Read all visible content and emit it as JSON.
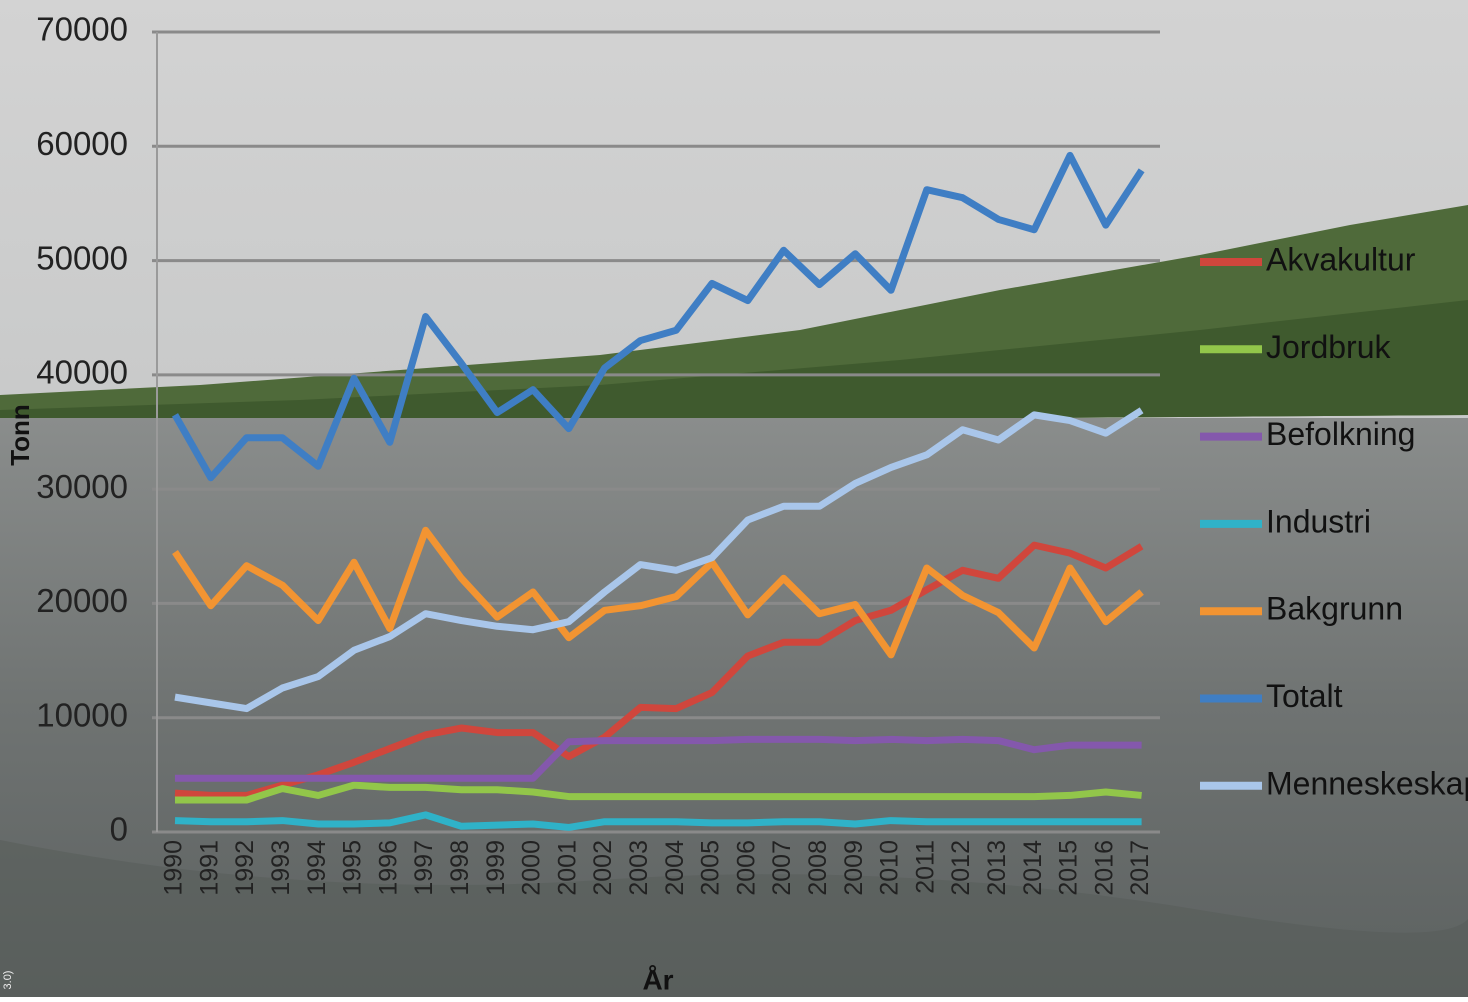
{
  "chart_data": {
    "type": "line",
    "y_label": "Tonn",
    "x_label": "År",
    "credit": "3.0)",
    "categories": [
      "1990",
      "1991",
      "1992",
      "1993",
      "1994",
      "1995",
      "1996",
      "1997",
      "1998",
      "1999",
      "2000",
      "2001",
      "2002",
      "2003",
      "2004",
      "2005",
      "2006",
      "2007",
      "2008",
      "2009",
      "2010",
      "2011",
      "2012",
      "2013",
      "2014",
      "2015",
      "2016",
      "2017"
    ],
    "ylim": [
      0,
      70000
    ],
    "yticks": [
      0,
      10000,
      20000,
      30000,
      40000,
      50000,
      60000,
      70000
    ],
    "grid": true,
    "series": [
      {
        "name": "Akvakultur",
        "color": "#d0463c",
        "values": [
          3400,
          3200,
          3200,
          4100,
          5000,
          6100,
          7300,
          8500,
          9100,
          8700,
          8700,
          6600,
          8300,
          10900,
          10800,
          12200,
          15400,
          16600,
          16600,
          18500,
          19400,
          21200,
          22900,
          22200,
          25100,
          24400,
          23100,
          25000
        ]
      },
      {
        "name": "Jordbruk",
        "color": "#92c64a",
        "values": [
          2800,
          2800,
          2800,
          3800,
          3200,
          4100,
          3900,
          3900,
          3700,
          3700,
          3500,
          3100,
          3100,
          3100,
          3100,
          3100,
          3100,
          3100,
          3100,
          3100,
          3100,
          3100,
          3100,
          3100,
          3100,
          3200,
          3500,
          3200
        ]
      },
      {
        "name": "Befolkning",
        "color": "#8458ac",
        "values": [
          4700,
          4700,
          4700,
          4700,
          4700,
          4700,
          4700,
          4700,
          4700,
          4700,
          4700,
          7900,
          8000,
          8000,
          8000,
          8000,
          8100,
          8100,
          8100,
          8000,
          8100,
          8000,
          8100,
          8000,
          7200,
          7600,
          7600,
          7600
        ]
      },
      {
        "name": "Industri",
        "color": "#2fb2c8",
        "values": [
          1000,
          900,
          900,
          1000,
          700,
          700,
          800,
          1500,
          500,
          600,
          700,
          400,
          900,
          900,
          900,
          800,
          800,
          900,
          900,
          700,
          1000,
          900,
          900,
          900,
          900,
          900,
          900,
          900
        ]
      },
      {
        "name": "Bakgrunn",
        "color": "#f29432",
        "values": [
          24500,
          19800,
          23300,
          21600,
          18500,
          23600,
          17800,
          26400,
          22200,
          18800,
          21000,
          17000,
          19400,
          19800,
          20600,
          23600,
          19000,
          22200,
          19100,
          19900,
          15500,
          23100,
          20700,
          19200,
          16100,
          23100,
          18400,
          21000
        ]
      },
      {
        "name": "Totalt",
        "color": "#3f7ec4",
        "values": [
          36500,
          31000,
          34500,
          34500,
          32000,
          39700,
          34100,
          45100,
          41000,
          36700,
          38700,
          35300,
          40600,
          43000,
          43900,
          48000,
          46500,
          50900,
          47900,
          50600,
          47400,
          56200,
          55500,
          53600,
          52700,
          59200,
          53100,
          57900
        ]
      },
      {
        "name": "Menneskeskapt",
        "color": "#a9c6ea",
        "values": [
          11800,
          11300,
          10800,
          12600,
          13600,
          15900,
          17100,
          19100,
          18500,
          18000,
          17700,
          18400,
          21000,
          23400,
          22900,
          24000,
          27300,
          28500,
          28500,
          30500,
          31900,
          33000,
          35200,
          34300,
          36500,
          36000,
          34900,
          36900
        ]
      }
    ]
  }
}
